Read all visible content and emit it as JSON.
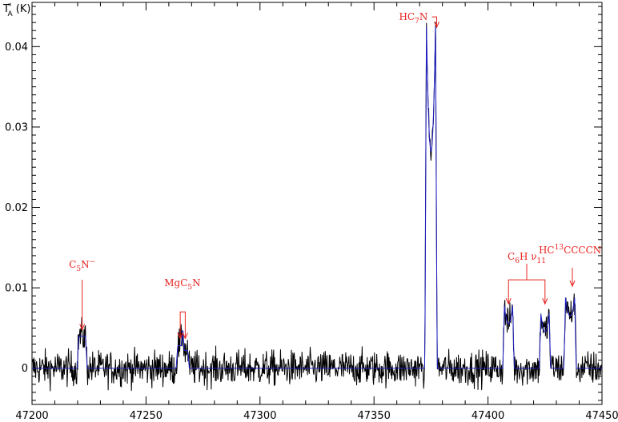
{
  "chart_data": {
    "type": "line",
    "title": "",
    "xlabel": "",
    "ylabel": "T",
    "ylabel_sup": "*",
    "ylabel_sub": "A",
    "ylabel_unit": " (K)",
    "xlim": [
      47200,
      47450
    ],
    "ylim": [
      -0.0045,
      0.0455
    ],
    "xticks": [
      47200,
      47250,
      47300,
      47350,
      47400,
      47450
    ],
    "xtick_labels": [
      "47200",
      "47250",
      "47300",
      "47350",
      "47400",
      "47450"
    ],
    "yticks": [
      0,
      0.01,
      0.02,
      0.03,
      0.04
    ],
    "ytick_labels": [
      "0",
      "0.01",
      "0.02",
      "0.03",
      "0.04"
    ],
    "grid": false,
    "legend": "none",
    "colors": {
      "observed": "#000000",
      "model": "#2020c8",
      "annotation": "#e8231f"
    },
    "lines": [
      {
        "label": "C5N-",
        "center": 47222,
        "width": 3.0,
        "peak": 0.004
      },
      {
        "label": "MgC5N-a",
        "center": 47265,
        "width": 2.2,
        "peak": 0.0028
      },
      {
        "label": "MgC5N-b",
        "center": 47267.2,
        "width": 2.2,
        "peak": 0.0022
      },
      {
        "label": "HC7N",
        "center": 47375,
        "width": 4.0,
        "peak": 0.0425,
        "dip": 0.027
      },
      {
        "label": "C6H-a",
        "center": 47409,
        "width": 3.6,
        "peak": 0.0078,
        "dip": 0.0055
      },
      {
        "label": "C6H-b",
        "center": 47425,
        "width": 3.6,
        "peak": 0.0068,
        "dip": 0.0045
      },
      {
        "label": "HC13CCCCN",
        "center": 47436,
        "width": 4.0,
        "peak": 0.0088,
        "dip": 0.0065
      }
    ],
    "noise_rms": 0.0011,
    "annotations": [
      {
        "id": "c5n",
        "parts": [
          [
            "C",
            "n"
          ],
          [
            "5",
            "sub"
          ],
          [
            "N",
            "n"
          ],
          [
            "−",
            "sup"
          ]
        ],
        "x": 47222,
        "arrow_x": [
          47222
        ],
        "text_y": 0.0125,
        "arrow_top": 0.011,
        "arrow_tip": 0.0048,
        "style": "simple"
      },
      {
        "id": "mgc5n",
        "parts": [
          [
            "MgC",
            "n"
          ],
          [
            "5",
            "sub"
          ],
          [
            "N",
            "n"
          ]
        ],
        "x": 47266,
        "arrow_x": [
          47265,
          47267.2
        ],
        "text_y": 0.0102,
        "arrow_top": 0.007,
        "arrow_tip": 0.0037,
        "style": "pair"
      },
      {
        "id": "hc7n",
        "parts": [
          [
            "HC",
            "n"
          ],
          [
            "7",
            "sub"
          ],
          [
            "N",
            "n"
          ]
        ],
        "x": 47368,
        "arrow_x": [
          47377.5
        ],
        "text_y": 0.0433,
        "arrow_top": 0.0438,
        "arrow_tip": 0.0424,
        "style": "hook"
      },
      {
        "id": "c6h",
        "parts": [
          [
            "C",
            "n"
          ],
          [
            "6",
            "sub"
          ],
          [
            "H  ",
            "n"
          ],
          [
            "ν",
            "n"
          ],
          [
            "11",
            "sub"
          ]
        ],
        "x": 47417,
        "arrow_x": [
          47409,
          47425
        ],
        "text_y": 0.0135,
        "arrow_top": 0.011,
        "arrow_tip": 0.008,
        "style": "bracket"
      },
      {
        "id": "hc13",
        "parts": [
          [
            "HC",
            "n"
          ],
          [
            "13",
            "sup"
          ],
          [
            "CCCCN",
            "n"
          ]
        ],
        "x": 47436,
        "arrow_x": [
          47437
        ],
        "text_y": 0.0143,
        "arrow_top": 0.0125,
        "arrow_tip": 0.0102,
        "style": "simple"
      }
    ]
  }
}
